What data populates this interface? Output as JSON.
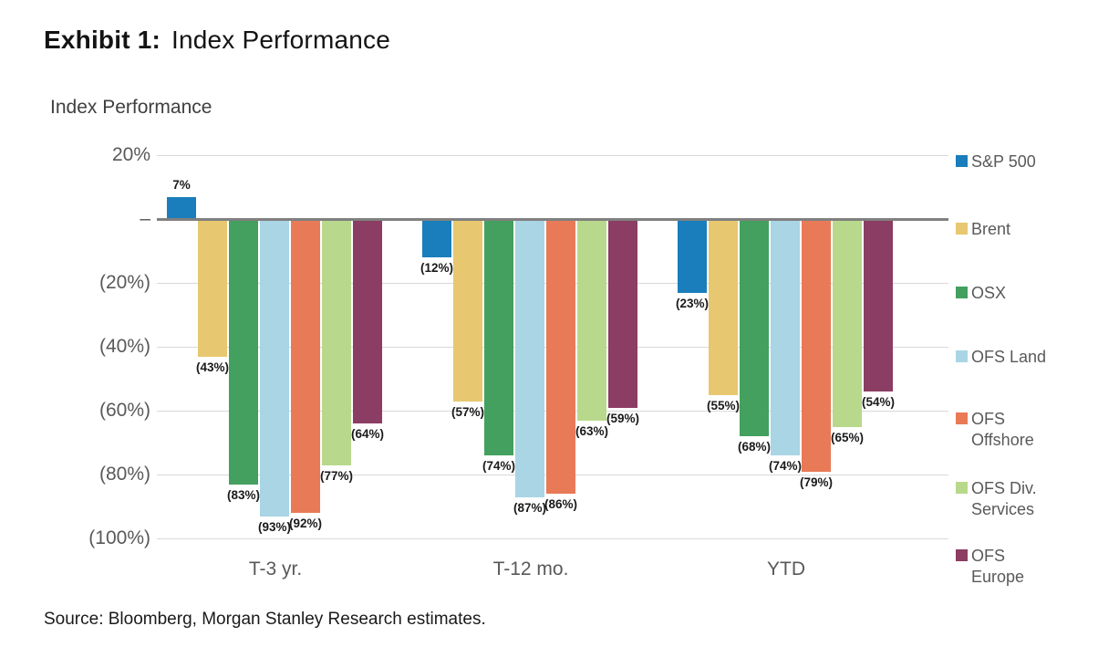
{
  "title": {
    "exhibit": "Exhibit 1:",
    "text": "Index Performance"
  },
  "chart_title": "Index Performance",
  "source": "Source: Bloomberg, Morgan Stanley Research estimates.",
  "chart_data": {
    "type": "bar",
    "categories": [
      "T-3 yr.",
      "T-12 mo.",
      "YTD"
    ],
    "series": [
      {
        "name": "S&P 500",
        "legend_label": "S&P 500",
        "color": "#1b7ebc",
        "values": [
          7,
          -12,
          -23
        ]
      },
      {
        "name": "Brent",
        "legend_label": "Brent",
        "color": "#e7c770",
        "values": [
          -43,
          -57,
          -55
        ]
      },
      {
        "name": "OSX",
        "legend_label": "OSX",
        "color": "#43a05e",
        "values": [
          -83,
          -74,
          -68
        ]
      },
      {
        "name": "OFS Land",
        "legend_label": "OFS Land",
        "color": "#a9d5e5",
        "values": [
          -93,
          -87,
          -74
        ]
      },
      {
        "name": "OFS Offshore",
        "legend_label": "OFS\nOffshore",
        "color": "#e87a57",
        "values": [
          -92,
          -86,
          -79
        ]
      },
      {
        "name": "OFS Div. Services",
        "legend_label": "OFS Div.\nServices",
        "color": "#b8d98c",
        "values": [
          -77,
          -63,
          -65
        ]
      },
      {
        "name": "OFS Europe",
        "legend_label": "OFS\nEurope",
        "color": "#8b3d63",
        "values": [
          -64,
          -59,
          -54
        ]
      }
    ],
    "ylim": [
      -100,
      20
    ],
    "yticks": [
      20,
      0,
      -20,
      -40,
      -60,
      -80,
      -100
    ],
    "ytick_labels": [
      "20%",
      "–",
      "(20%)",
      "(40%)",
      "(60%)",
      "(80%)",
      "(100%)"
    ],
    "grid": true,
    "legend_position": "right",
    "value_label_format": "negatives-in-parentheses",
    "xlabel": "",
    "ylabel": ""
  }
}
